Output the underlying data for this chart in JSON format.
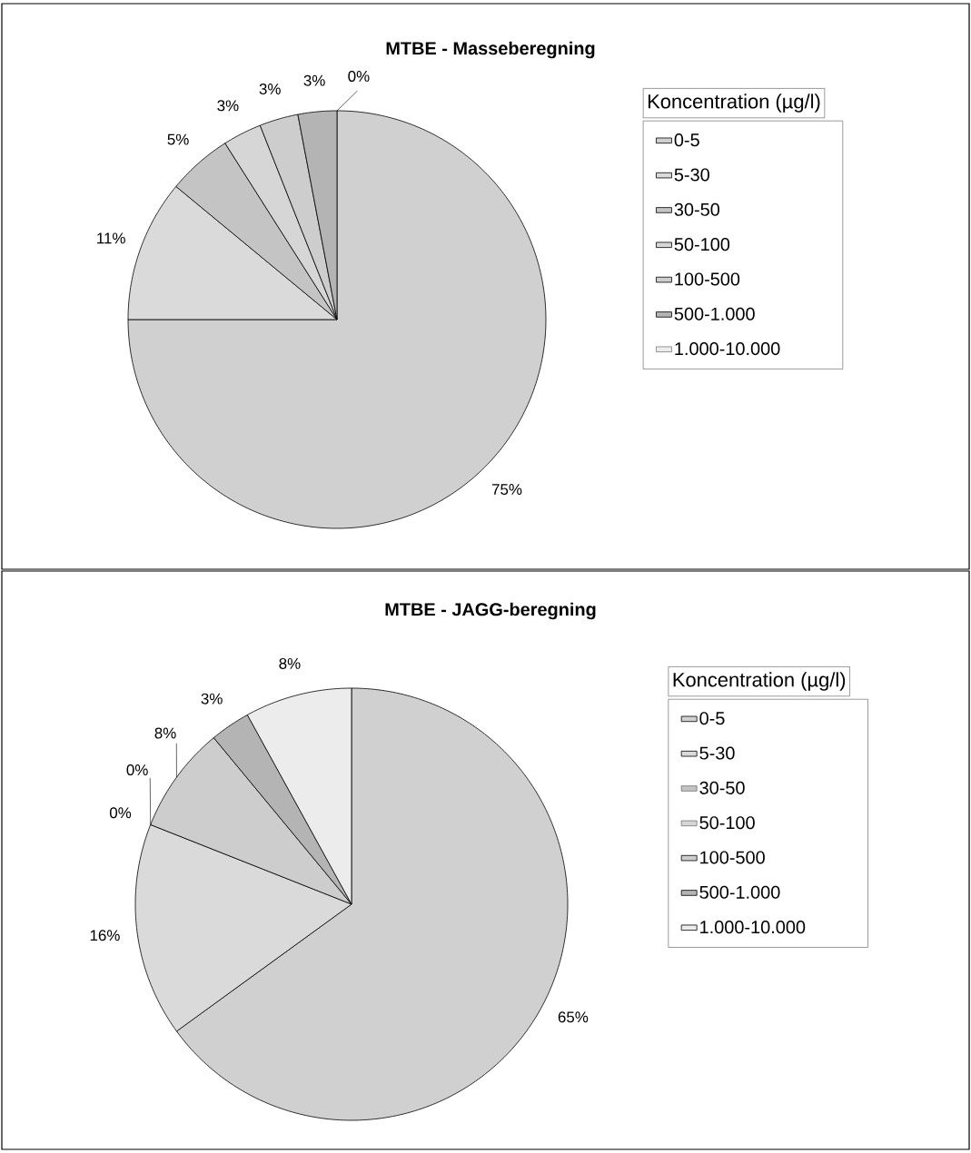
{
  "chart_data": [
    {
      "type": "pie",
      "title": "MTBE - Masseberegning",
      "legend_title": "Koncentration (µg/l)",
      "legend": "right",
      "categories": [
        "0-5",
        "5-30",
        "30-50",
        "50-100",
        "100-500",
        "500-1.000",
        "1.000-10.000"
      ],
      "values": [
        75,
        11,
        5,
        3,
        3,
        3,
        0
      ],
      "value_labels": [
        "75%",
        "11%",
        "5%",
        "3%",
        "3%",
        "3%",
        "0%"
      ],
      "colors": [
        "#d0d0d0",
        "#dadada",
        "#c4c4c4",
        "#d6d6d6",
        "#cdcdcd",
        "#b4b4b4",
        "#ececec"
      ]
    },
    {
      "type": "pie",
      "title": "MTBE - JAGG-beregning",
      "legend_title": "Koncentration (µg/l)",
      "legend": "right",
      "categories": [
        "0-5",
        "5-30",
        "30-50",
        "50-100",
        "100-500",
        "500-1.000",
        "1.000-10.000"
      ],
      "values": [
        65,
        16,
        0,
        0,
        8,
        3,
        8
      ],
      "value_labels": [
        "65%",
        "16%",
        "0%",
        "0%",
        "8%",
        "3%",
        "8%"
      ],
      "colors": [
        "#d0d0d0",
        "#dadada",
        "#c4c4c4",
        "#d6d6d6",
        "#cdcdcd",
        "#b4b4b4",
        "#ececec"
      ]
    }
  ]
}
